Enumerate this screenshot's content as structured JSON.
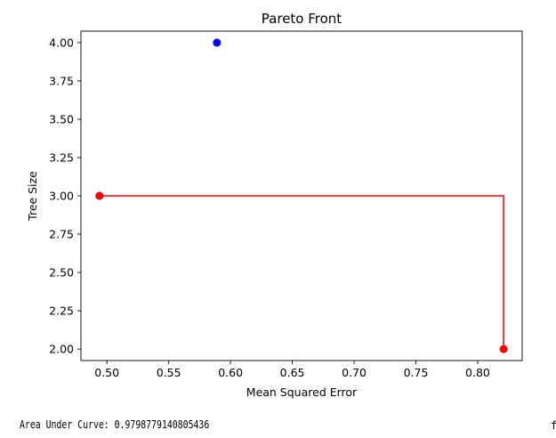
{
  "chart_data": {
    "type": "scatter",
    "title": "Pareto Front",
    "xlabel": "Mean Squared Error",
    "ylabel": "Tree Size",
    "xlim": [
      0.479,
      0.836
    ],
    "ylim": [
      1.925,
      4.075
    ],
    "x_ticks": [
      0.5,
      0.55,
      0.6,
      0.65,
      0.7,
      0.75,
      0.8
    ],
    "y_ticks": [
      2.0,
      2.25,
      2.5,
      2.75,
      3.0,
      3.25,
      3.5,
      3.75,
      4.0
    ],
    "x_tick_labels": [
      "0.50",
      "0.55",
      "0.60",
      "0.65",
      "0.70",
      "0.75",
      "0.80"
    ],
    "y_tick_labels": [
      "2.00",
      "2.25",
      "2.50",
      "2.75",
      "3.00",
      "3.25",
      "3.50",
      "3.75",
      "4.00"
    ],
    "grid": false,
    "legend": null,
    "series": [
      {
        "kind": "points",
        "color": "#0000ff",
        "points": [
          {
            "x": 0.589,
            "y": 4.0
          },
          {
            "x": 0.494,
            "y": 3.0
          }
        ]
      },
      {
        "kind": "points",
        "color": "#ff0000",
        "points": [
          {
            "x": 0.494,
            "y": 3.0
          },
          {
            "x": 0.821,
            "y": 2.0
          }
        ]
      },
      {
        "kind": "step-line",
        "color": "#ff0000",
        "points": [
          {
            "x": 0.494,
            "y": 3.0
          },
          {
            "x": 0.821,
            "y": 3.0
          },
          {
            "x": 0.821,
            "y": 2.0
          }
        ]
      }
    ]
  },
  "footer": {
    "text": "Area Under Curve: 0.9798779140805436",
    "corner_glyph": "f"
  }
}
